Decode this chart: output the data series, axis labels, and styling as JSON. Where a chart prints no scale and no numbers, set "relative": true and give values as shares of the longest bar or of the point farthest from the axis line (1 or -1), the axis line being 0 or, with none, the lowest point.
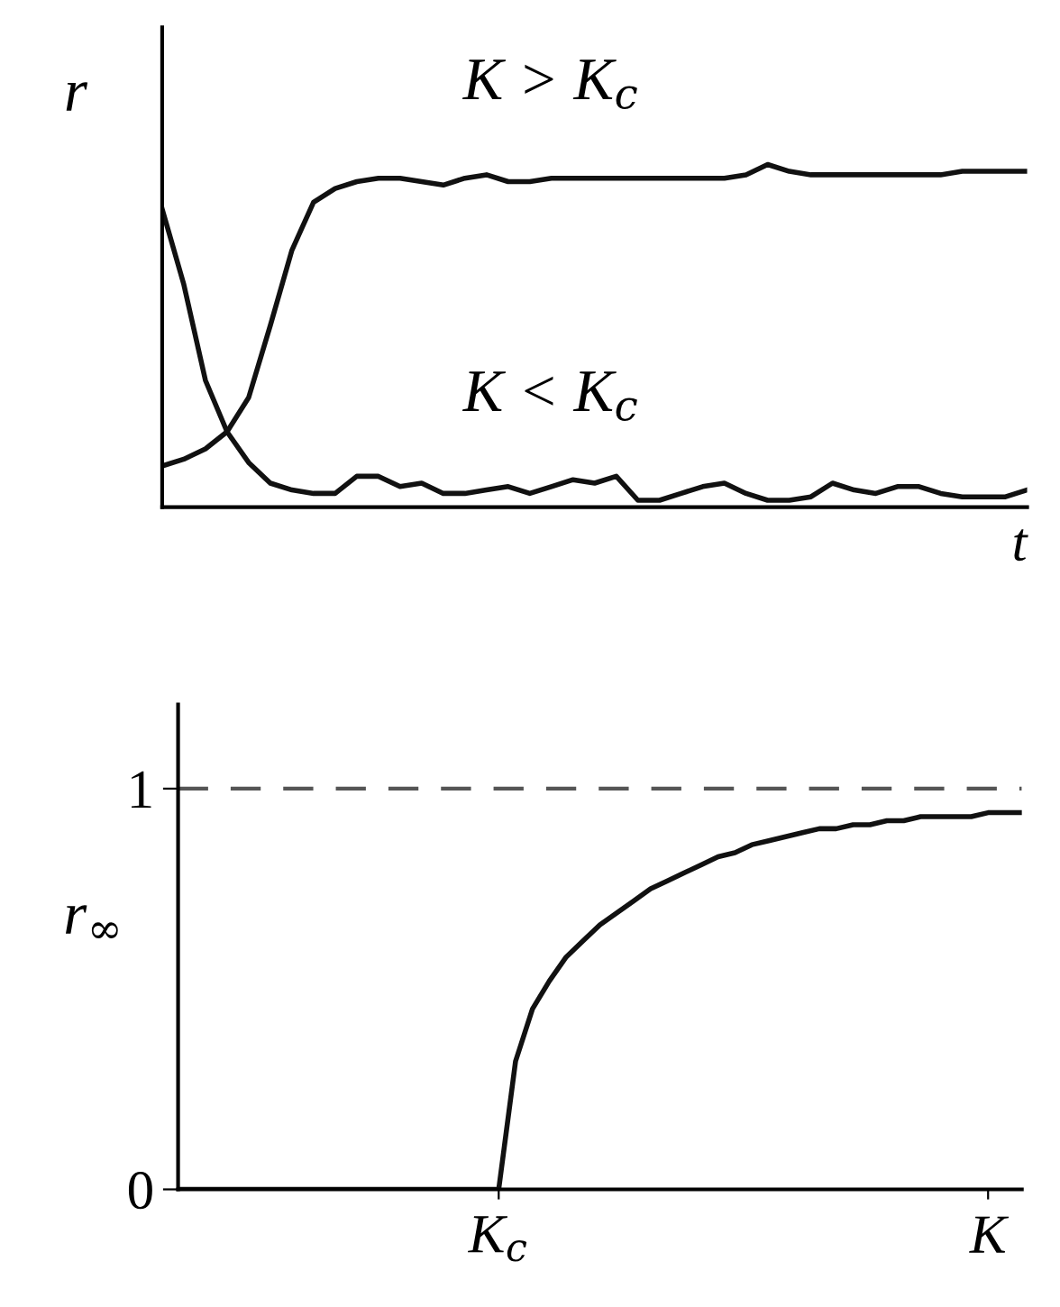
{
  "chart_data": [
    {
      "type": "line",
      "relative": true,
      "xlabel": "t",
      "ylabel": "r",
      "categories": [
        null,
        null,
        null,
        null,
        null,
        null,
        null,
        null,
        null,
        null,
        null,
        null,
        null,
        null,
        null,
        null,
        null,
        null,
        null,
        null,
        null,
        null,
        null,
        null,
        null,
        null,
        null,
        null,
        null,
        null,
        null,
        null,
        null,
        null,
        null,
        null,
        null,
        null,
        null,
        null,
        null
      ],
      "series": [
        {
          "color": "#111111",
          "values": [
            0.12,
            0.14,
            0.17,
            0.22,
            0.32,
            0.53,
            0.75,
            0.89,
            0.93,
            0.95,
            0.96,
            0.96,
            0.95,
            0.94,
            0.96,
            0.97,
            0.95,
            0.95,
            0.96,
            0.96,
            0.96,
            0.96,
            0.96,
            0.96,
            0.96,
            0.96,
            0.96,
            0.97,
            1.0,
            0.98,
            0.97,
            0.97,
            0.97,
            0.97,
            0.97,
            0.97,
            0.97,
            0.98,
            0.98,
            0.98,
            0.98
          ]
        },
        {
          "color": "#111111",
          "values": [
            0.87,
            0.65,
            0.37,
            0.22,
            0.13,
            0.07,
            0.05,
            0.04,
            0.04,
            0.09,
            0.09,
            0.06,
            0.07,
            0.04,
            0.04,
            0.05,
            0.06,
            0.04,
            0.06,
            0.08,
            0.07,
            0.09,
            0.02,
            0.02,
            0.04,
            0.06,
            0.07,
            0.04,
            0.02,
            0.02,
            0.03,
            0.07,
            0.05,
            0.04,
            0.06,
            0.06,
            0.04,
            0.03,
            0.03,
            0.03,
            0.05
          ]
        }
      ],
      "annotations": [
        "K > K$_{c}$",
        "K < K$_{c}$"
      ],
      "grid": false,
      "legend": false,
      "tick_labels": false
    },
    {
      "type": "line",
      "ylabel": "r$_{∞}$",
      "categories": [
        null,
        null,
        null,
        null,
        null,
        null,
        null,
        null,
        null,
        null,
        null,
        null,
        null,
        null,
        null,
        null,
        null,
        null,
        null,
        "K$_{c}$",
        null,
        null,
        null,
        null,
        null,
        null,
        null,
        null,
        null,
        null,
        null,
        null,
        null,
        null,
        null,
        null,
        null,
        null,
        null,
        null,
        null,
        null,
        null,
        null,
        null,
        null,
        null,
        null,
        "K",
        null,
        null
      ],
      "series": [
        {
          "color": "#111111",
          "values": [
            0,
            0,
            0,
            0,
            0,
            0,
            0,
            0,
            0,
            0,
            0,
            0,
            0,
            0,
            0,
            0,
            0,
            0,
            0,
            0,
            0.32,
            0.45,
            0.52,
            0.58,
            0.62,
            0.66,
            0.69,
            0.72,
            0.75,
            0.77,
            0.79,
            0.81,
            0.83,
            0.84,
            0.86,
            0.87,
            0.88,
            0.89,
            0.9,
            0.9,
            0.91,
            0.91,
            0.92,
            0.92,
            0.93,
            0.93,
            0.93,
            0.93,
            0.94,
            0.94,
            0.94
          ]
        }
      ],
      "ylim": [
        0,
        1.21
      ],
      "yticks": [
        0,
        1
      ],
      "ref_lines": [
        {
          "axis": "y",
          "value": 1,
          "color": "#555555",
          "line_style": "dashed"
        }
      ],
      "grid": false,
      "legend": false
    }
  ]
}
